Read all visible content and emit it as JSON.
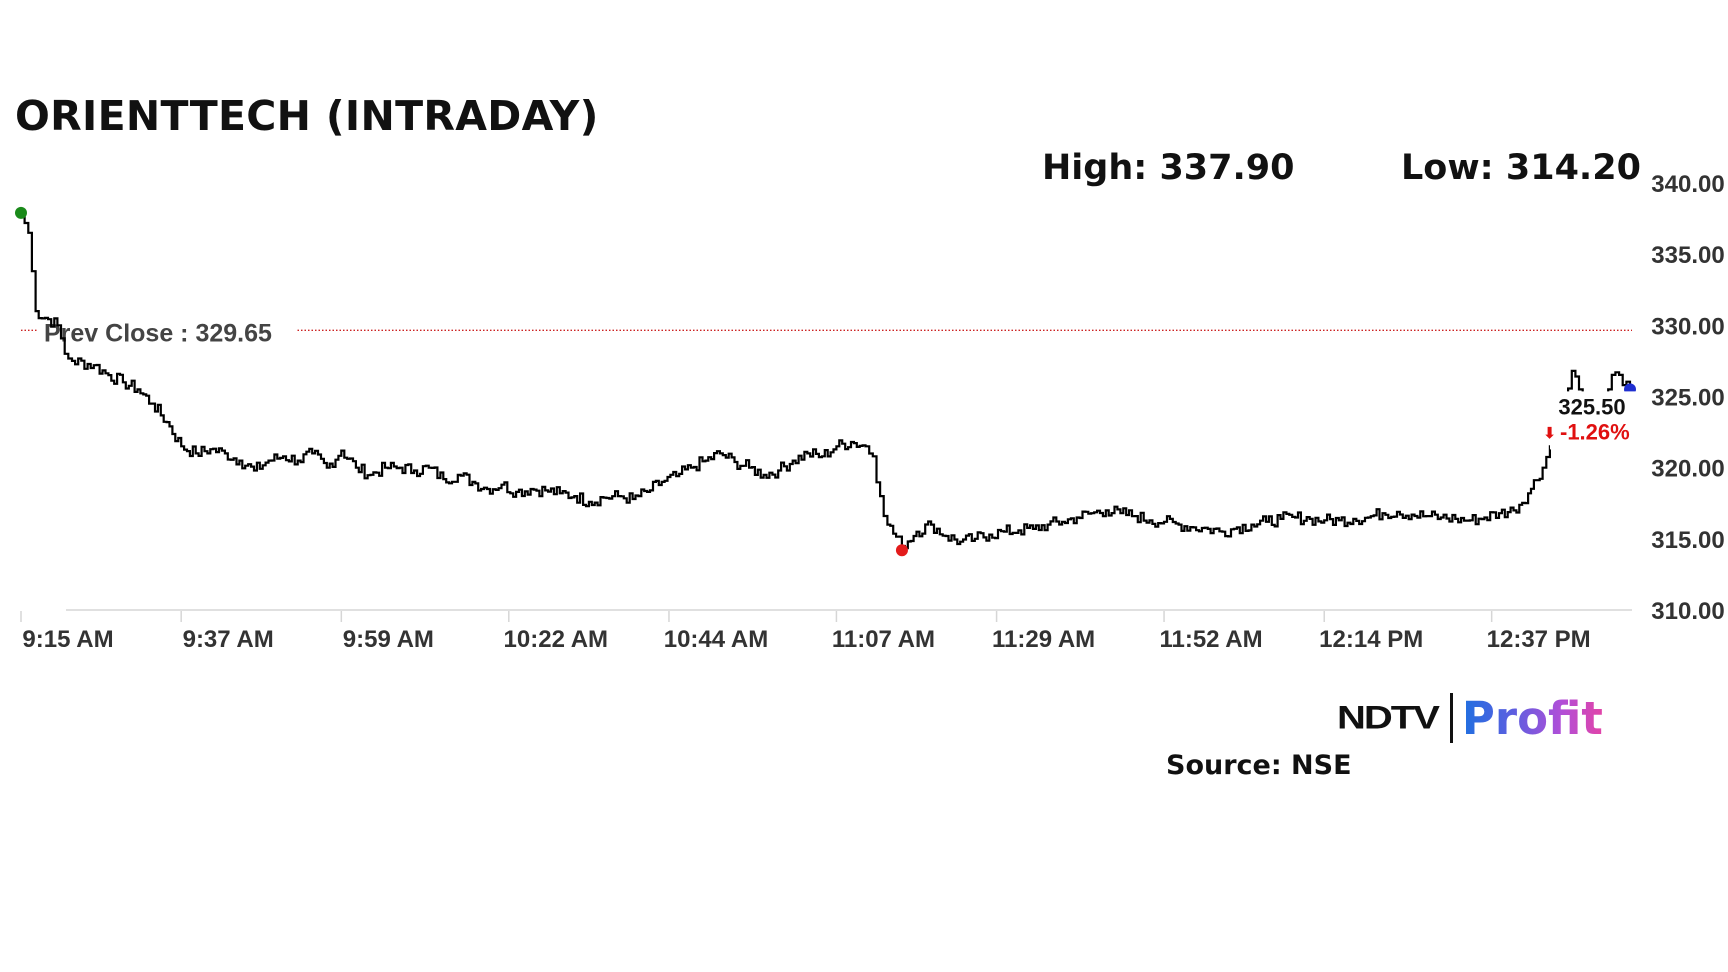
{
  "header": {
    "title": "ORIENTTECH (INTRADAY)",
    "high_text": "High: 337.90",
    "low_text": "Low: 314.20"
  },
  "footer": {
    "brand_ndtv": "NDTV",
    "brand_profit": "Profit",
    "source": "Source: NSE"
  },
  "colors": {
    "line": "#000000",
    "prev_close_line": "#cc2222",
    "open_marker": "#1a8a1a",
    "low_marker": "#e31b1b",
    "last_marker": "#1f2fd0",
    "change_negative": "#e01010",
    "axis_text": "#333333"
  },
  "chart_data": {
    "type": "line",
    "title": "ORIENTTECH (INTRADAY)",
    "xlabel": "",
    "ylabel": "",
    "ylim": [
      310,
      340
    ],
    "yticks": [
      340,
      335,
      330,
      325,
      320,
      315,
      310
    ],
    "ytick_labels": [
      "340.00",
      "335.00",
      "330.00",
      "325.00",
      "320.00",
      "315.00",
      "310.00"
    ],
    "xlim": [
      "9:15 AM",
      "12:56 PM"
    ],
    "xticks": [
      "9:15 AM",
      "9:37 AM",
      "9:59 AM",
      "10:22 AM",
      "10:44 AM",
      "11:07 AM",
      "11:29 AM",
      "11:52 AM",
      "12:14 PM",
      "12:37 PM"
    ],
    "high": 337.9,
    "low": 314.2,
    "prev_close": 329.65,
    "prev_close_label": "Prev Close : 329.65",
    "last_price": 325.5,
    "last_price_label": "325.50",
    "change_label": "-1.26%",
    "change_arrow": "⬇",
    "legend": "none",
    "grid": false,
    "x": [
      "9:15",
      "9:16",
      "9:17",
      "9:20",
      "9:21",
      "9:22",
      "9:25",
      "9:27",
      "9:29",
      "9:31",
      "9:33",
      "9:35",
      "9:37",
      "9:39",
      "9:41",
      "9:43",
      "9:45",
      "9:47",
      "9:49",
      "9:51",
      "9:53",
      "9:55",
      "9:57",
      "9:59",
      "10:01",
      "10:03",
      "10:05",
      "10:07",
      "10:09",
      "10:11",
      "10:13",
      "10:15",
      "10:17",
      "10:19",
      "10:21",
      "10:23",
      "10:25",
      "10:27",
      "10:29",
      "10:31",
      "10:33",
      "10:35",
      "10:37",
      "10:39",
      "10:41",
      "10:43",
      "10:45",
      "10:47",
      "10:49",
      "10:51",
      "10:53",
      "10:55",
      "10:57",
      "10:59",
      "11:01",
      "11:03",
      "11:05",
      "11:07",
      "11:09",
      "11:11",
      "11:12",
      "11:13",
      "11:14",
      "11:16",
      "11:18",
      "11:20",
      "11:22",
      "11:24",
      "11:26",
      "11:28",
      "11:30",
      "11:32",
      "11:34",
      "11:36",
      "11:38",
      "11:40",
      "11:42",
      "11:44",
      "11:46",
      "11:48",
      "11:50",
      "11:52",
      "11:54",
      "11:56",
      "11:58",
      "12:00",
      "12:02",
      "12:04",
      "12:06",
      "12:08",
      "12:10",
      "12:12",
      "12:14",
      "12:16",
      "12:18",
      "12:20",
      "12:22",
      "12:24",
      "12:26",
      "12:28",
      "12:30",
      "12:32",
      "12:34",
      "12:36",
      "12:38",
      "12:40",
      "12:42",
      "12:44",
      "12:45",
      "12:46",
      "12:47",
      "12:48",
      "12:49",
      "12:50",
      "12:51",
      "12:52",
      "12:53",
      "12:54",
      "12:55",
      "12:56"
    ],
    "y": [
      337.9,
      336.5,
      331.0,
      330.0,
      328.0,
      327.5,
      327.2,
      326.5,
      326.0,
      325.5,
      324.5,
      323.2,
      321.5,
      321.0,
      321.3,
      321.0,
      320.5,
      319.8,
      320.5,
      320.8,
      320.5,
      321.0,
      320.0,
      321.2,
      320.0,
      319.5,
      320.0,
      320.0,
      319.8,
      320.0,
      319.2,
      319.5,
      319.0,
      318.5,
      318.8,
      318.3,
      318.5,
      318.4,
      318.2,
      318.0,
      317.6,
      317.9,
      318.0,
      317.8,
      318.3,
      319.0,
      319.4,
      320.0,
      320.5,
      321.0,
      320.4,
      320.0,
      319.5,
      319.8,
      320.5,
      321.0,
      320.8,
      321.5,
      321.8,
      321.5,
      320.8,
      318.0,
      316.0,
      314.5,
      315.5,
      316.0,
      315.2,
      314.8,
      315.0,
      315.3,
      315.5,
      315.6,
      315.7,
      316.0,
      316.2,
      316.5,
      316.8,
      317.0,
      316.8,
      316.6,
      316.3,
      316.2,
      316.0,
      315.8,
      315.7,
      315.5,
      315.8,
      316.0,
      316.2,
      316.4,
      316.5,
      316.4,
      316.3,
      316.3,
      316.4,
      316.5,
      316.8,
      316.9,
      316.7,
      316.6,
      316.5,
      316.4,
      316.3,
      316.5,
      316.8,
      317.0,
      318.2,
      320.0,
      321.5,
      324.0,
      325.2,
      326.8,
      325.5,
      324.8,
      324.8,
      325.2,
      325.5,
      326.7,
      325.8,
      325.5
    ]
  }
}
